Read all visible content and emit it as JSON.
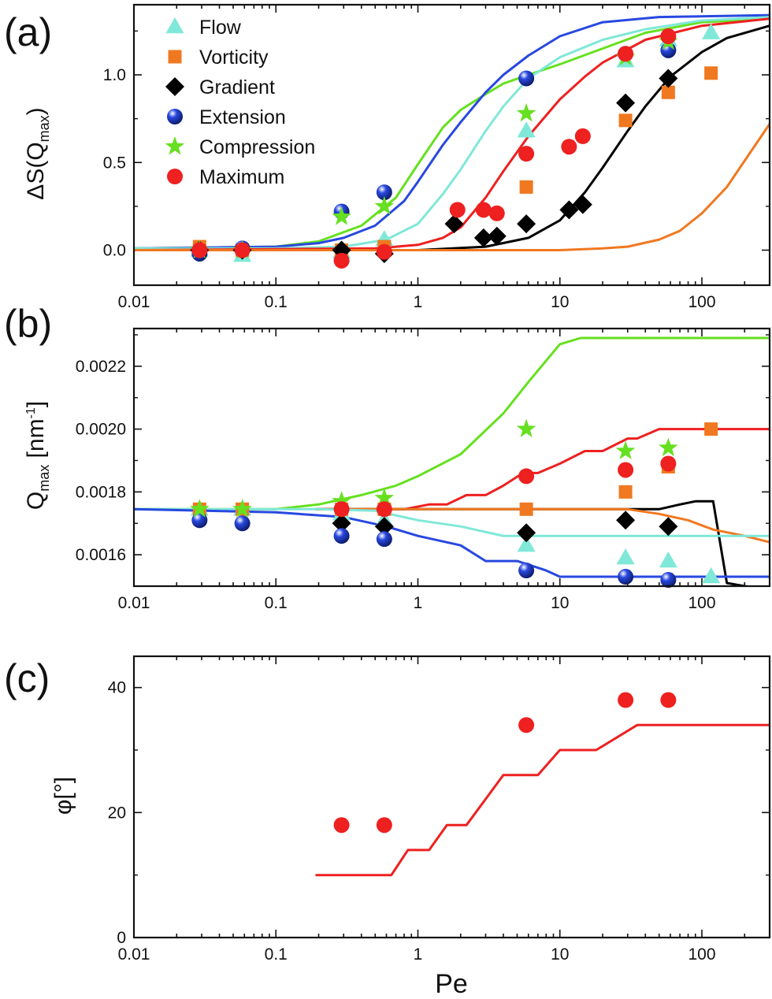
{
  "chart_data": [
    {
      "panel": "(a)",
      "type": "scatter",
      "x_scale": "log",
      "xlim": [
        0.01,
        300
      ],
      "ylim": [
        -0.2,
        1.4
      ],
      "x_ticks": [
        {
          "v": 0.01,
          "label": "0.01"
        },
        {
          "v": 0.1,
          "label": "0.1"
        },
        {
          "v": 1,
          "label": "1"
        },
        {
          "v": 10,
          "label": "10"
        },
        {
          "v": 100,
          "label": "100"
        }
      ],
      "y_ticks": [
        {
          "v": 0.0,
          "label": "0.0"
        },
        {
          "v": 0.5,
          "label": "0.5"
        },
        {
          "v": 1.0,
          "label": "1.0"
        }
      ],
      "ylabel": "ΔS(Q",
      "ylabel_sub": "max",
      "ylabel_end": ")",
      "legend": {
        "placement": "top-left",
        "entries": [
          {
            "name": "Flow",
            "color": "#80e8d8",
            "marker": "triangle"
          },
          {
            "name": "Vorticity",
            "color": "#f07820",
            "marker": "square"
          },
          {
            "name": "Gradient",
            "color": "#000000",
            "marker": "diamond"
          },
          {
            "name": "Extension",
            "color": "#2848e0",
            "marker": "sphere"
          },
          {
            "name": "Compression",
            "color": "#66e020",
            "marker": "star"
          },
          {
            "name": "Maximum",
            "color": "#ee2020",
            "marker": "circle"
          }
        ]
      },
      "series": [
        {
          "name": "Flow",
          "color": "#80e8d8",
          "marker": "triangle",
          "x": [
            0.029,
            0.058,
            0.29,
            0.58,
            5.8,
            29,
            58,
            116
          ],
          "y": [
            0.0,
            -0.03,
            -0.01,
            0.06,
            0.68,
            1.08,
            1.2,
            1.24
          ]
        },
        {
          "name": "Vorticity",
          "color": "#f07820",
          "marker": "square",
          "x": [
            0.029,
            0.058,
            0.29,
            0.58,
            5.8,
            29,
            58,
            116
          ],
          "y": [
            0.02,
            0.0,
            0.0,
            0.02,
            0.36,
            0.74,
            0.9,
            1.01
          ]
        },
        {
          "name": "Gradient",
          "color": "#000000",
          "marker": "diamond",
          "x": [
            0.029,
            0.058,
            0.29,
            0.58,
            1.8,
            2.9,
            3.6,
            5.8,
            11.6,
            14.5,
            29,
            58
          ],
          "y": [
            0.0,
            0.0,
            0.0,
            -0.02,
            0.15,
            0.07,
            0.08,
            0.15,
            0.23,
            0.26,
            0.84,
            0.98
          ]
        },
        {
          "name": "Extension",
          "color": "#2848e0",
          "marker": "sphere",
          "x": [
            0.029,
            0.058,
            0.29,
            0.58,
            5.8,
            29,
            58
          ],
          "y": [
            -0.02,
            0.01,
            0.22,
            0.33,
            0.98,
            1.12,
            1.14
          ]
        },
        {
          "name": "Compression",
          "color": "#66e020",
          "marker": "star",
          "x": [
            0.029,
            0.058,
            0.29,
            0.58,
            5.8,
            29,
            58
          ],
          "y": [
            0.0,
            0.0,
            0.19,
            0.25,
            0.78,
            1.1,
            1.19
          ]
        },
        {
          "name": "Maximum",
          "color": "#ee2020",
          "marker": "circle",
          "x": [
            0.029,
            0.058,
            0.29,
            0.58,
            1.9,
            2.9,
            3.6,
            5.8,
            11.6,
            14.5,
            29,
            58
          ],
          "y": [
            0.0,
            0.0,
            -0.06,
            -0.01,
            0.23,
            0.23,
            0.21,
            0.55,
            0.59,
            0.65,
            1.12,
            1.22
          ]
        }
      ],
      "curves": [
        {
          "color": "#66e020",
          "x": [
            0.01,
            0.1,
            0.2,
            0.4,
            0.7,
            1.0,
            1.5,
            2.0,
            3.0,
            4.0,
            6.0,
            10,
            20,
            40,
            100,
            300
          ],
          "y": [
            0.01,
            0.02,
            0.05,
            0.14,
            0.3,
            0.49,
            0.7,
            0.8,
            0.89,
            0.95,
            1.0,
            1.06,
            1.15,
            1.24,
            1.3,
            1.32
          ]
        },
        {
          "color": "#2848e0",
          "x": [
            0.01,
            0.1,
            0.2,
            0.3,
            0.5,
            0.8,
            1.0,
            1.5,
            2.0,
            3.0,
            4.0,
            6.0,
            10,
            20,
            50,
            300
          ],
          "y": [
            0.01,
            0.02,
            0.04,
            0.07,
            0.14,
            0.28,
            0.39,
            0.6,
            0.73,
            0.9,
            1.0,
            1.11,
            1.22,
            1.3,
            1.33,
            1.34
          ]
        },
        {
          "color": "#80e8d8",
          "x": [
            0.01,
            0.1,
            0.3,
            0.6,
            1.0,
            1.5,
            2.0,
            3.0,
            4.0,
            6.0,
            10,
            20,
            40,
            100,
            300
          ],
          "y": [
            0.01,
            0.01,
            0.02,
            0.06,
            0.15,
            0.32,
            0.46,
            0.68,
            0.82,
            0.98,
            1.1,
            1.2,
            1.26,
            1.31,
            1.33
          ]
        },
        {
          "color": "#ee2020",
          "x": [
            0.01,
            0.5,
            1.0,
            1.5,
            2.0,
            3.0,
            4.0,
            6.0,
            10,
            15,
            20,
            40,
            100,
            300
          ],
          "y": [
            0.0,
            0.01,
            0.03,
            0.07,
            0.13,
            0.3,
            0.45,
            0.65,
            0.86,
            0.99,
            1.07,
            1.2,
            1.28,
            1.32
          ]
        },
        {
          "color": "#000000",
          "x": [
            0.01,
            1.0,
            3.0,
            6.0,
            10,
            15,
            20,
            30,
            40,
            60,
            100,
            150,
            300
          ],
          "y": [
            0.0,
            0.0,
            0.02,
            0.07,
            0.17,
            0.33,
            0.47,
            0.68,
            0.82,
            0.99,
            1.13,
            1.21,
            1.28
          ]
        },
        {
          "color": "#f07820",
          "x": [
            0.01,
            5,
            10,
            20,
            30,
            50,
            70,
            100,
            150,
            200,
            300
          ],
          "y": [
            0.0,
            0.0,
            0.0,
            0.01,
            0.02,
            0.06,
            0.11,
            0.21,
            0.36,
            0.51,
            0.72
          ]
        }
      ]
    },
    {
      "panel": "(b)",
      "type": "scatter",
      "x_scale": "log",
      "xlim": [
        0.01,
        300
      ],
      "ylim": [
        0.0015,
        0.00232
      ],
      "x_ticks": [
        {
          "v": 0.01,
          "label": "0.01"
        },
        {
          "v": 0.1,
          "label": "0.1"
        },
        {
          "v": 1,
          "label": "1"
        },
        {
          "v": 10,
          "label": "10"
        },
        {
          "v": 100,
          "label": "100"
        }
      ],
      "y_ticks": [
        {
          "v": 0.0016,
          "label": "0.0016"
        },
        {
          "v": 0.0018,
          "label": "0.0018"
        },
        {
          "v": 0.002,
          "label": "0.0020"
        },
        {
          "v": 0.0022,
          "label": "0.0022"
        }
      ],
      "ylabel": "Q",
      "ylabel_sub": "max",
      "ylabel_mid": " [nm",
      "ylabel_sup": "-1",
      "ylabel_end": "]",
      "series": [
        {
          "name": "Flow",
          "color": "#80e8d8",
          "marker": "triangle",
          "x": [
            0.029,
            0.058,
            0.29,
            0.58,
            5.8,
            29,
            58,
            116
          ],
          "y": [
            0.001745,
            0.001745,
            0.00173,
            0.00171,
            0.00163,
            0.00159,
            0.00158,
            0.00153
          ]
        },
        {
          "name": "Vorticity",
          "color": "#f07820",
          "marker": "square",
          "x": [
            0.029,
            0.058,
            0.29,
            0.58,
            5.8,
            29,
            58,
            116
          ],
          "y": [
            0.001745,
            0.001745,
            0.001745,
            0.001745,
            0.001745,
            0.0018,
            0.00188,
            0.002
          ]
        },
        {
          "name": "Gradient",
          "color": "#000000",
          "marker": "diamond",
          "x": [
            0.29,
            0.58,
            5.8,
            29,
            58
          ],
          "y": [
            0.0017,
            0.00169,
            0.00167,
            0.00171,
            0.00169
          ]
        },
        {
          "name": "Extension",
          "color": "#2848e0",
          "marker": "sphere",
          "x": [
            0.029,
            0.058,
            0.29,
            0.58,
            5.8,
            29,
            58
          ],
          "y": [
            0.00171,
            0.0017,
            0.00166,
            0.00165,
            0.00155,
            0.00153,
            0.00152
          ]
        },
        {
          "name": "Compression",
          "color": "#66e020",
          "marker": "star",
          "x": [
            0.029,
            0.058,
            0.29,
            0.58,
            5.8,
            29,
            58
          ],
          "y": [
            0.001745,
            0.001745,
            0.00177,
            0.00178,
            0.002,
            0.00193,
            0.00194
          ]
        },
        {
          "name": "Maximum",
          "color": "#ee2020",
          "marker": "circle",
          "x": [
            0.29,
            0.58,
            5.8,
            29,
            58
          ],
          "y": [
            0.001745,
            0.001745,
            0.00185,
            0.00187,
            0.00189
          ]
        }
      ],
      "curves": [
        {
          "color": "#66e020",
          "x": [
            0.01,
            0.1,
            0.2,
            0.4,
            0.7,
            1.0,
            2.0,
            4.0,
            6.0,
            10,
            14,
            20,
            50,
            300
          ],
          "y": [
            0.001745,
            0.001745,
            0.00176,
            0.00179,
            0.00182,
            0.00185,
            0.00192,
            0.00205,
            0.00215,
            0.00227,
            0.00229,
            0.00229,
            0.00229,
            0.00229
          ]
        },
        {
          "color": "#ee2020",
          "x": [
            0.19,
            0.8,
            1.2,
            1.6,
            2.2,
            3.0,
            4.0,
            5.5,
            7.0,
            10,
            15,
            20,
            30,
            35,
            50,
            300
          ],
          "y": [
            0.001745,
            0.001745,
            0.00176,
            0.00176,
            0.00179,
            0.00179,
            0.00182,
            0.00186,
            0.00186,
            0.00189,
            0.00193,
            0.00193,
            0.00197,
            0.00197,
            0.002,
            0.002
          ]
        },
        {
          "color": "#000000",
          "x": [
            0.19,
            5,
            30,
            50,
            70,
            90,
            120,
            150,
            200,
            300
          ],
          "y": [
            0.001745,
            0.001745,
            0.001745,
            0.001745,
            0.00176,
            0.00177,
            0.00177,
            0.00151,
            0.0015,
            0.00149
          ]
        },
        {
          "color": "#f07820",
          "x": [
            0.19,
            10,
            30,
            50,
            80,
            120,
            200,
            300
          ],
          "y": [
            0.001745,
            0.001745,
            0.001745,
            0.00173,
            0.00171,
            0.00168,
            0.00166,
            0.00164
          ]
        },
        {
          "color": "#80e8d8",
          "x": [
            0.01,
            0.2,
            0.5,
            1.0,
            2.0,
            4.0,
            300
          ],
          "y": [
            0.001745,
            0.001745,
            0.00174,
            0.00171,
            0.00169,
            0.00166,
            0.00166
          ]
        },
        {
          "color": "#2848e0",
          "x": [
            0.01,
            0.1,
            0.3,
            0.6,
            1.0,
            2.0,
            3.0,
            5.0,
            8.0,
            10,
            300
          ],
          "y": [
            0.001745,
            0.001735,
            0.00172,
            0.00169,
            0.00166,
            0.00163,
            0.00158,
            0.00158,
            0.00155,
            0.00153,
            0.00153
          ]
        }
      ]
    },
    {
      "panel": "(c)",
      "type": "scatter",
      "x_scale": "log",
      "xlim": [
        0.01,
        300
      ],
      "ylim": [
        0,
        45
      ],
      "x_ticks": [
        {
          "v": 0.01,
          "label": "0.01"
        },
        {
          "v": 0.1,
          "label": "0.1"
        },
        {
          "v": 1,
          "label": "1"
        },
        {
          "v": 10,
          "label": "10"
        },
        {
          "v": 100,
          "label": "100"
        }
      ],
      "y_ticks": [
        {
          "v": 0,
          "label": "0"
        },
        {
          "v": 20,
          "label": "20"
        },
        {
          "v": 40,
          "label": "40"
        }
      ],
      "ylabel": "φ[°]",
      "xlabel": "Pe",
      "series": [
        {
          "name": "Maximum",
          "color": "#ee2020",
          "marker": "circle",
          "x": [
            0.29,
            0.58,
            5.8,
            29,
            58
          ],
          "y": [
            18,
            18,
            34,
            38,
            38
          ]
        }
      ],
      "curves": [
        {
          "color": "#ee2020",
          "x": [
            0.19,
            0.65,
            0.85,
            1.2,
            1.6,
            2.2,
            4.0,
            7.0,
            10,
            18,
            35,
            300
          ],
          "y": [
            10,
            10,
            14,
            14,
            18,
            18,
            26,
            26,
            30,
            30,
            34,
            34
          ]
        }
      ]
    }
  ]
}
